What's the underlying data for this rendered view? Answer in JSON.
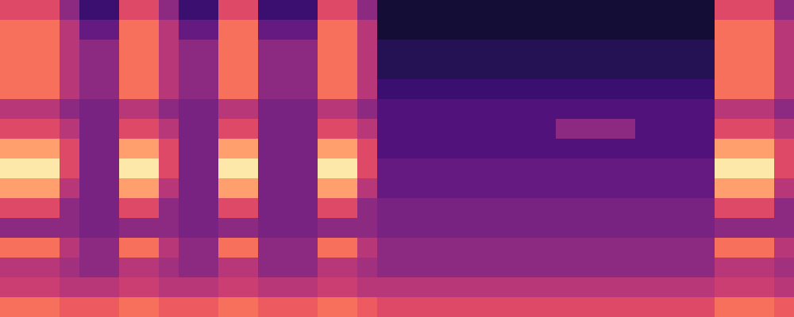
{
  "chart_data": {
    "type": "heatmap",
    "color": "magma",
    "tick_labels": false,
    "zlim": [
      0,
      10
    ],
    "cells": [
      [
        6,
        6,
        6,
        4,
        2,
        2,
        6,
        6,
        4,
        2,
        2,
        6,
        6,
        2,
        2,
        2,
        6,
        6,
        4,
        1,
        1,
        1,
        1,
        1,
        1,
        1,
        1,
        1,
        1,
        1,
        1,
        1,
        1,
        1,
        1,
        1,
        6,
        6,
        6,
        4
      ],
      [
        7,
        7,
        7,
        5,
        3,
        3,
        7,
        7,
        5,
        3,
        3,
        7,
        7,
        3,
        3,
        3,
        7,
        7,
        5,
        1,
        1,
        1,
        1,
        1,
        1,
        1,
        1,
        1,
        1,
        1,
        1,
        1,
        1,
        1,
        1,
        1,
        7,
        7,
        7,
        5
      ],
      [
        7,
        7,
        7,
        5,
        4,
        4,
        7,
        7,
        5,
        4,
        4,
        7,
        7,
        4,
        4,
        4,
        7,
        7,
        5,
        1.5,
        1.5,
        1.5,
        1.5,
        1.5,
        1.5,
        1.5,
        1.5,
        1.5,
        1.5,
        1.5,
        1.5,
        1.5,
        1.5,
        1.5,
        1.5,
        1.5,
        7,
        7,
        7,
        5
      ],
      [
        7,
        7,
        7,
        5,
        4,
        4,
        7,
        7,
        5,
        4,
        4,
        7,
        7,
        4,
        4,
        4,
        7,
        7,
        5,
        1.5,
        1.5,
        1.5,
        1.5,
        1.5,
        1.5,
        1.5,
        1.5,
        1.5,
        1.5,
        1.5,
        1.5,
        1.5,
        1.5,
        1.5,
        1.5,
        1.5,
        7,
        7,
        7,
        5
      ],
      [
        7,
        7,
        7,
        5,
        4,
        4,
        7,
        7,
        5,
        4,
        4,
        7,
        7,
        4,
        4,
        4,
        7,
        7,
        5,
        2,
        2,
        2,
        2,
        2,
        2,
        2,
        2,
        2,
        2,
        2,
        2,
        2,
        2,
        2,
        2,
        2,
        7,
        7,
        7,
        5
      ],
      [
        5,
        5,
        5,
        4,
        3.5,
        3.5,
        5,
        5,
        4,
        3.5,
        3.5,
        5,
        5,
        3.5,
        3.5,
        3.5,
        5,
        5,
        4,
        2.5,
        2.5,
        2.5,
        2.5,
        2.5,
        2.5,
        2.5,
        2.5,
        2.5,
        2.5,
        2.5,
        2.5,
        2.5,
        2.5,
        2.5,
        2.5,
        2.5,
        5,
        5,
        5,
        4
      ],
      [
        6,
        6,
        6,
        5,
        3.5,
        3.5,
        6,
        6,
        5,
        3.5,
        3.5,
        6,
        6,
        3.5,
        3.5,
        3.5,
        6,
        6,
        5,
        2.5,
        2.5,
        2.5,
        2.5,
        2.5,
        2.5,
        2.5,
        2.5,
        2.5,
        4,
        4,
        4,
        4,
        2.5,
        2.5,
        2.5,
        2.5,
        6,
        6,
        6,
        5
      ],
      [
        8,
        8,
        8,
        6,
        3.5,
        3.5,
        8,
        8,
        6,
        3.5,
        3.5,
        8,
        8,
        3.5,
        3.5,
        3.5,
        8,
        8,
        6,
        2.5,
        2.5,
        2.5,
        2.5,
        2.5,
        2.5,
        2.5,
        2.5,
        2.5,
        2.5,
        2.5,
        2.5,
        2.5,
        2.5,
        2.5,
        2.5,
        2.5,
        8,
        8,
        8,
        6
      ],
      [
        9.5,
        9.5,
        9.5,
        6,
        3.5,
        3.5,
        9.5,
        9.5,
        6,
        3.5,
        3.5,
        9.5,
        9.5,
        3.5,
        3.5,
        3.5,
        9.5,
        9.5,
        6,
        3,
        3,
        3,
        3,
        3,
        3,
        3,
        3,
        3,
        3,
        3,
        3,
        3,
        3,
        3,
        3,
        3,
        9.5,
        9.5,
        9.5,
        6
      ],
      [
        8,
        8,
        8,
        5,
        3.5,
        3.5,
        8,
        8,
        5,
        3.5,
        3.5,
        8,
        8,
        3.5,
        3.5,
        3.5,
        8,
        8,
        5,
        3,
        3,
        3,
        3,
        3,
        3,
        3,
        3,
        3,
        3,
        3,
        3,
        3,
        3,
        3,
        3,
        3,
        8,
        8,
        8,
        5
      ],
      [
        6,
        6,
        6,
        4,
        3.5,
        3.5,
        6,
        6,
        4,
        3.5,
        3.5,
        6,
        6,
        3.5,
        3.5,
        3.5,
        6,
        6,
        4,
        3.5,
        3.5,
        3.5,
        3.5,
        3.5,
        3.5,
        3.5,
        3.5,
        3.5,
        3.5,
        3.5,
        3.5,
        3.5,
        3.5,
        3.5,
        3.5,
        3.5,
        6,
        6,
        6,
        4
      ],
      [
        4,
        4,
        4,
        4,
        3.5,
        3.5,
        4,
        4,
        4,
        3.5,
        3.5,
        4,
        4,
        3.5,
        3.5,
        3.5,
        4,
        4,
        4,
        3.5,
        3.5,
        3.5,
        3.5,
        3.5,
        3.5,
        3.5,
        3.5,
        3.5,
        3.5,
        3.5,
        3.5,
        3.5,
        3.5,
        3.5,
        3.5,
        3.5,
        4,
        4,
        4,
        4
      ],
      [
        7,
        7,
        7,
        5,
        4,
        4,
        7,
        7,
        5,
        4,
        4,
        7,
        7,
        4,
        4,
        4,
        7,
        7,
        5,
        4,
        4,
        4,
        4,
        4,
        4,
        4,
        4,
        4,
        4,
        4,
        4,
        4,
        4,
        4,
        4,
        4,
        7,
        7,
        7,
        5
      ],
      [
        5,
        5,
        5,
        4.5,
        4,
        4,
        5,
        5,
        4.5,
        4,
        4,
        5,
        5,
        4,
        4,
        4,
        5,
        5,
        4.5,
        4,
        4,
        4,
        4,
        4,
        4,
        4,
        4,
        4,
        4,
        4,
        4,
        4,
        4,
        4,
        4,
        4,
        5,
        5,
        5,
        4.5
      ],
      [
        5.5,
        5.5,
        5.5,
        5,
        5,
        5,
        5.5,
        5.5,
        5,
        5,
        5,
        5.5,
        5.5,
        5,
        5,
        5,
        5.5,
        5.5,
        5,
        5,
        5,
        5,
        5,
        5,
        5,
        5,
        5,
        5,
        5,
        5,
        5,
        5,
        5,
        5,
        5,
        5,
        5.5,
        5.5,
        5.5,
        5
      ],
      [
        7,
        7,
        7,
        6.5,
        6.5,
        6.5,
        7,
        7,
        6.5,
        6.5,
        6.5,
        7,
        7,
        6.5,
        6.5,
        6.5,
        7,
        7,
        6.5,
        6,
        6,
        6,
        6,
        6,
        6,
        6,
        6,
        6,
        6,
        6,
        6,
        6,
        6,
        6,
        6,
        6,
        7,
        7,
        7,
        6.5
      ]
    ]
  }
}
